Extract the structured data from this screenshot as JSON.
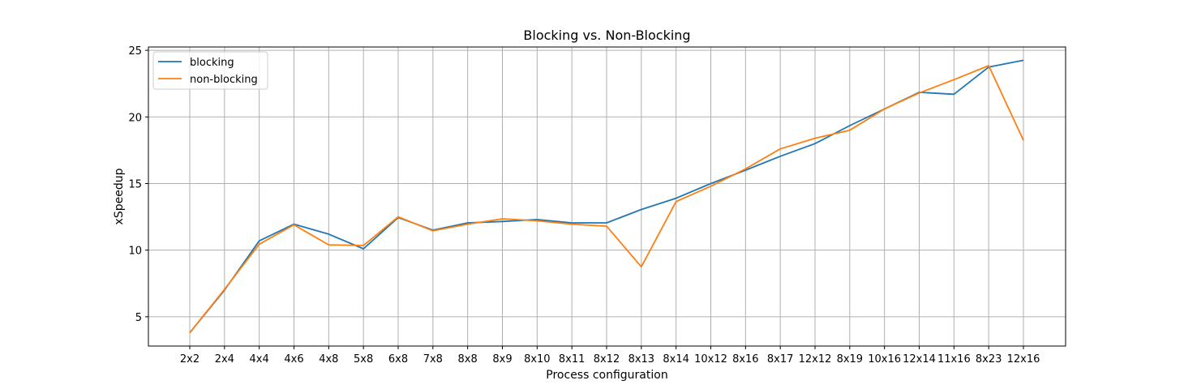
{
  "chart_data": {
    "type": "line",
    "title": "Blocking vs. Non-Blocking",
    "xlabel": "Process configuration",
    "ylabel": "xSpeedup",
    "categories": [
      "2x2",
      "2x4",
      "4x4",
      "4x6",
      "4x8",
      "5x8",
      "6x8",
      "7x8",
      "8x8",
      "8x9",
      "8x10",
      "8x11",
      "8x12",
      "8x13",
      "8x14",
      "10x12",
      "8x16",
      "8x17",
      "12x12",
      "8x19",
      "10x16",
      "12x14",
      "11x16",
      "8x23",
      "12x16"
    ],
    "series": [
      {
        "name": "blocking",
        "color": "#1f77b4",
        "values": [
          3.8,
          7.0,
          10.7,
          11.95,
          11.2,
          10.1,
          12.45,
          11.5,
          12.05,
          12.15,
          12.3,
          12.05,
          12.05,
          13.05,
          13.9,
          15.0,
          16.0,
          17.05,
          18.0,
          19.35,
          20.6,
          21.85,
          21.7,
          23.75,
          24.25
        ]
      },
      {
        "name": "non-blocking",
        "color": "#ff7f0e",
        "values": [
          3.8,
          7.05,
          10.45,
          11.9,
          10.4,
          10.35,
          12.5,
          11.45,
          11.95,
          12.35,
          12.2,
          11.95,
          11.8,
          8.75,
          13.65,
          14.8,
          16.1,
          17.6,
          18.4,
          19.0,
          20.6,
          21.8,
          22.8,
          23.85,
          18.25
        ]
      }
    ],
    "yticks": [
      5,
      10,
      15,
      20,
      25
    ],
    "ylim": [
      2.8,
      25.25
    ],
    "grid": true,
    "legend_position": "upper-left"
  }
}
